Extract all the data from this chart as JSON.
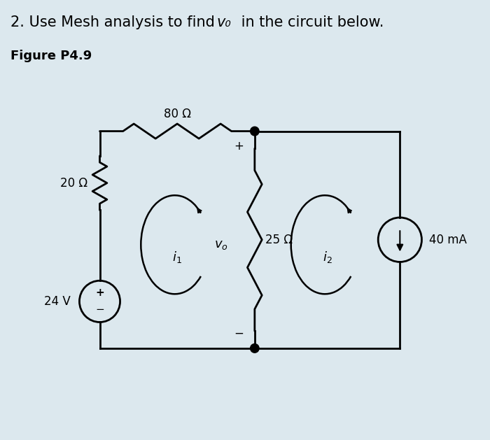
{
  "title_part1": "2. Use Mesh analysis to find ",
  "title_vo": "v₀",
  "title_part2": " in the circuit below.",
  "subtitle": "Figure P4.9",
  "bg_color": "#dce8ee",
  "title_fontsize": 15,
  "subtitle_fontsize": 13,
  "label_80": "80 Ω",
  "label_20": "20 Ω",
  "label_25": "25 Ω",
  "label_24v": "24 V",
  "label_40ma": "40 mA",
  "label_i1": "$i_1$",
  "label_i2": "$i_2$",
  "label_vo": "$v_o$",
  "lw": 2.0
}
